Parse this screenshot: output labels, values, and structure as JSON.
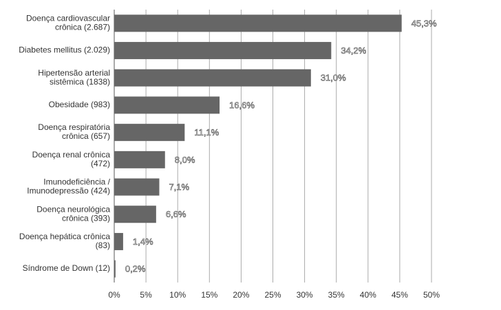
{
  "chart_data": {
    "type": "bar",
    "orientation": "horizontal",
    "categories": [
      [
        "Doença cardiovascular",
        "crônica (2.687)"
      ],
      [
        "Diabetes mellitus (2.029)"
      ],
      [
        "Hipertensão arterial",
        "sistêmica (1838)"
      ],
      [
        "Obesidade (983)"
      ],
      [
        "Doença respiratória",
        "crônica (657)"
      ],
      [
        "Doença renal crônica",
        "(472)"
      ],
      [
        "Imunodeficiência /",
        "Imunodepressão (424)"
      ],
      [
        "Doença neurológica",
        "crônica (393)"
      ],
      [
        "Doença hepática crônica",
        "(83)"
      ],
      [
        "Síndrome de Down (12)"
      ]
    ],
    "values": [
      45.3,
      34.2,
      31.0,
      16.6,
      11.1,
      8.0,
      7.1,
      6.6,
      1.4,
      0.2
    ],
    "value_labels": [
      "45,3%",
      "34,2%",
      "31,0%",
      "16,6%",
      "11,1%",
      "8,0%",
      "7,1%",
      "6,6%",
      "1,4%",
      "0,2%"
    ],
    "color": "#666666",
    "xlim": [
      0,
      50
    ],
    "xticks": [
      {
        "value": 0,
        "label": "0%"
      },
      {
        "value": 5,
        "label": "5%"
      },
      {
        "value": 10,
        "label": "10%"
      },
      {
        "value": 15,
        "label": "15%"
      },
      {
        "value": 20,
        "label": "20%"
      },
      {
        "value": 25,
        "label": "25%"
      },
      {
        "value": 30,
        "label": "30%"
      },
      {
        "value": 35,
        "label": "35%"
      },
      {
        "value": 40,
        "label": "40%"
      },
      {
        "value": 45,
        "label": "45%"
      },
      {
        "value": 50,
        "label": "50%"
      }
    ],
    "grid": true
  }
}
